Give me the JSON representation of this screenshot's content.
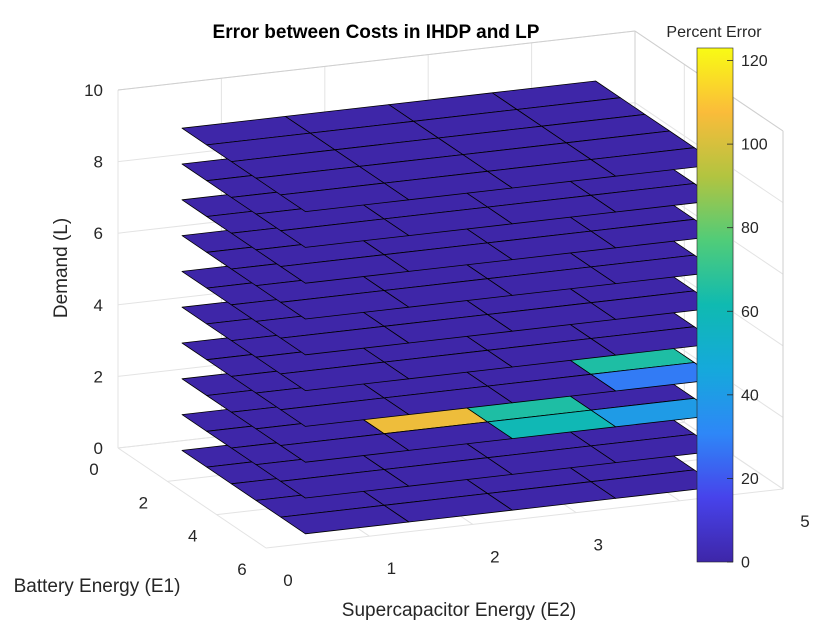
{
  "chart_data": {
    "type": "surface3d-slices",
    "title": "Error between Costs in IHDP and LP",
    "xlabel": "Battery Energy (E1)",
    "ylabel": "Supercapacitor Energy (E2)",
    "zlabel": "Demand (L)",
    "colorbar_label": "Percent Error",
    "colormap": "parula",
    "clim": [
      0,
      123
    ],
    "xlim": [
      0,
      6
    ],
    "ylim": [
      0,
      5
    ],
    "zlim": [
      0,
      10
    ],
    "x_ticks": [
      "0",
      "2",
      "4",
      "6"
    ],
    "y_ticks": [
      "5",
      "4",
      "3",
      "2",
      "1",
      "0"
    ],
    "z_ticks": [
      "0",
      "2",
      "4",
      "6",
      "8",
      "10"
    ],
    "colorbar_ticks": [
      "0",
      "20",
      "40",
      "60",
      "80",
      "100",
      "120"
    ],
    "colorbar_tick_values": [
      0,
      20,
      40,
      60,
      80,
      100,
      120
    ],
    "grid": true,
    "slice_levels": [
      0,
      1,
      2,
      3,
      4,
      5,
      6,
      7,
      8,
      9
    ],
    "e1_centers": [
      0.5,
      1.5,
      2.5,
      3.5,
      4.5,
      5.5
    ],
    "e2_centers": [
      0.5,
      1.5,
      2.5,
      3.5,
      4.5
    ],
    "slices": [
      {
        "demand": 0,
        "error": [
          [
            0,
            0,
            0,
            0,
            0
          ],
          [
            0,
            0,
            0,
            0,
            0
          ],
          [
            0,
            0,
            0,
            0,
            0
          ],
          [
            0,
            0,
            0,
            0,
            0
          ],
          [
            0,
            0,
            0,
            0,
            0
          ],
          [
            0,
            0,
            0,
            0,
            0
          ]
        ]
      },
      {
        "demand": 1,
        "error": [
          [
            0,
            0,
            0,
            0,
            0
          ],
          [
            0,
            0,
            0,
            0,
            0
          ],
          [
            0,
            0,
            0,
            0,
            0
          ],
          [
            0,
            0,
            0,
            0,
            0
          ],
          [
            0,
            0,
            0,
            0,
            0
          ],
          [
            0,
            0,
            0,
            0,
            0
          ]
        ]
      },
      {
        "demand": 2,
        "error": [
          [
            0,
            0,
            0,
            0,
            0
          ],
          [
            0,
            0,
            0,
            0,
            0
          ],
          [
            0,
            50,
            0,
            0,
            0
          ],
          [
            0,
            105,
            65,
            0,
            0
          ],
          [
            0,
            0,
            60,
            40,
            0
          ],
          [
            0,
            0,
            0,
            45,
            0
          ]
        ]
      },
      {
        "demand": 3,
        "error": [
          [
            0,
            0,
            0,
            0,
            0
          ],
          [
            0,
            0,
            0,
            0,
            0
          ],
          [
            0,
            0,
            75,
            0,
            0
          ],
          [
            0,
            0,
            0,
            65,
            0
          ],
          [
            0,
            0,
            0,
            28,
            0
          ],
          [
            0,
            0,
            0,
            0,
            0
          ]
        ]
      },
      {
        "demand": 4,
        "error": [
          [
            0,
            0,
            0,
            0,
            0
          ],
          [
            0,
            0,
            0,
            0,
            0
          ],
          [
            0,
            0,
            0,
            0,
            0
          ],
          [
            0,
            0,
            0,
            0,
            30
          ],
          [
            0,
            0,
            0,
            0,
            20
          ],
          [
            0,
            0,
            0,
            0,
            0
          ]
        ]
      },
      {
        "demand": 5,
        "error": [
          [
            0,
            0,
            0,
            0,
            0
          ],
          [
            0,
            0,
            0,
            0,
            0
          ],
          [
            0,
            0,
            0,
            0,
            0
          ],
          [
            0,
            0,
            0,
            0,
            0
          ],
          [
            0,
            0,
            0,
            0,
            0
          ],
          [
            0,
            0,
            0,
            0,
            0
          ]
        ]
      },
      {
        "demand": 6,
        "error": [
          [
            0,
            0,
            0,
            0,
            0
          ],
          [
            0,
            0,
            0,
            0,
            0
          ],
          [
            0,
            0,
            0,
            0,
            0
          ],
          [
            0,
            0,
            0,
            0,
            0
          ],
          [
            0,
            0,
            0,
            0,
            0
          ],
          [
            0,
            0,
            0,
            0,
            0
          ]
        ]
      },
      {
        "demand": 7,
        "error": [
          [
            0,
            0,
            0,
            0,
            0
          ],
          [
            0,
            0,
            0,
            0,
            0
          ],
          [
            0,
            0,
            0,
            0,
            0
          ],
          [
            0,
            0,
            0,
            0,
            0
          ],
          [
            0,
            0,
            0,
            0,
            0
          ],
          [
            0,
            0,
            0,
            0,
            0
          ]
        ]
      },
      {
        "demand": 8,
        "error": [
          [
            0,
            0,
            0,
            0,
            0
          ],
          [
            0,
            0,
            0,
            0,
            0
          ],
          [
            0,
            0,
            0,
            0,
            0
          ],
          [
            0,
            0,
            0,
            0,
            0
          ],
          [
            0,
            0,
            0,
            0,
            0
          ],
          [
            0,
            0,
            0,
            0,
            0
          ]
        ]
      },
      {
        "demand": 9,
        "error": [
          [
            0,
            0,
            0,
            0,
            0
          ],
          [
            0,
            0,
            0,
            0,
            0
          ],
          [
            0,
            0,
            0,
            0,
            0
          ],
          [
            0,
            0,
            0,
            0,
            0
          ],
          [
            0,
            0,
            0,
            0,
            0
          ],
          [
            0,
            0,
            0,
            0,
            0
          ]
        ]
      }
    ]
  }
}
